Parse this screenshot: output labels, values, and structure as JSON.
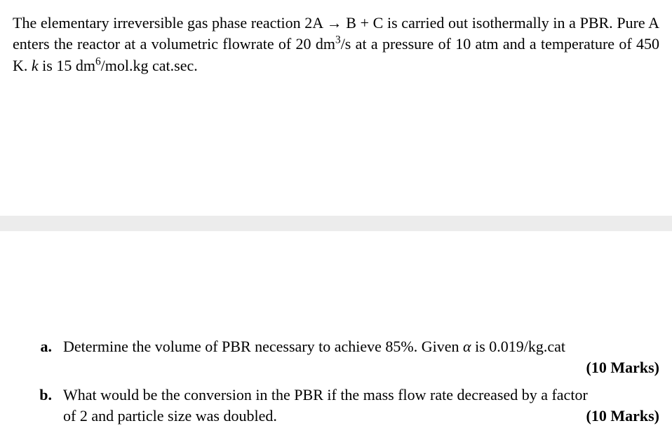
{
  "problem": {
    "reaction_text_prefix": "The elementary irreversible gas phase reaction 2A ",
    "arrow": "→",
    "reaction_text_mid": " B + C is carried out isothermally in a PBR. Pure A enters the reactor at a volumetric flowrate of 20 dm",
    "super3": "3",
    "flowrate_unit_tail": "/s at a pressure of 10 atm and a temperature of 450 K. ",
    "k_label": "k",
    "k_text": " is 15 dm",
    "super6": "6",
    "k_unit_tail": "/mol.kg cat.sec."
  },
  "questions": {
    "a": {
      "marker": "a.",
      "text_part1": "Determine the volume of PBR necessary to achieve 85%. Given ",
      "alpha": "α",
      "text_part2": " is 0.019/kg.cat",
      "marks": "(10 Marks)"
    },
    "b": {
      "marker": "b.",
      "text": "What would be the conversion in the PBR if the mass flow rate decreased by a factor",
      "text_line2": "of 2 and particle size was doubled.",
      "marks": "(10 Marks)"
    }
  }
}
